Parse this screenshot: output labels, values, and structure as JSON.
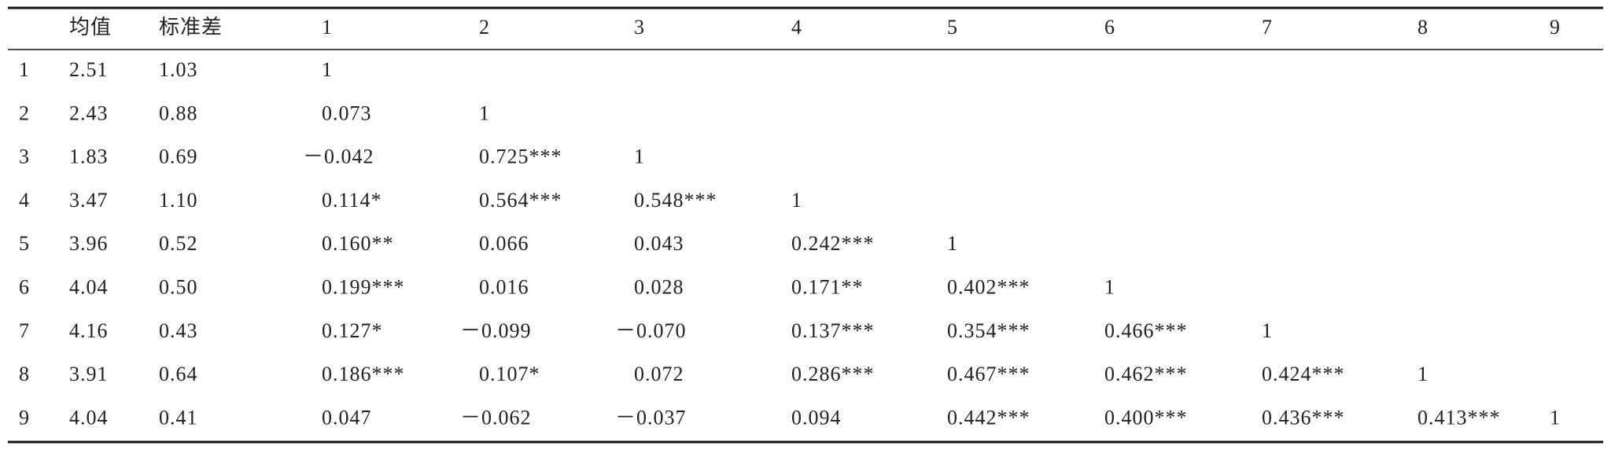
{
  "table": {
    "header": [
      "均值",
      "标准差",
      "1",
      "2",
      "3",
      "4",
      "5",
      "6",
      "7",
      "8",
      "9"
    ],
    "rows": [
      [
        "1",
        "2.51",
        "1.03",
        "1"
      ],
      [
        "2",
        "2.43",
        "0.88",
        "0.073",
        "1"
      ],
      [
        "3",
        "1.83",
        "0.69",
        "－0.042",
        "0.725***",
        "1"
      ],
      [
        "4",
        "3.47",
        "1.10",
        "0.114*",
        "0.564***",
        "0.548***",
        "1"
      ],
      [
        "5",
        "3.96",
        "0.52",
        "0.160**",
        "0.066",
        "0.043",
        "0.242***",
        "1"
      ],
      [
        "6",
        "4.04",
        "0.50",
        "0.199***",
        "0.016",
        "0.028",
        "0.171**",
        "0.402***",
        "1"
      ],
      [
        "7",
        "4.16",
        "0.43",
        "0.127*",
        "－0.099",
        "－0.070",
        "0.137***",
        "0.354***",
        "0.466***",
        "1"
      ],
      [
        "8",
        "3.91",
        "0.64",
        "0.186***",
        "0.107*",
        "0.072",
        "0.286***",
        "0.467***",
        "0.462***",
        "0.424***",
        "1"
      ],
      [
        "9",
        "4.04",
        "0.41",
        "0.047",
        "－0.062",
        "－0.037",
        "0.094",
        "0.442***",
        "0.400***",
        "0.436***",
        "0.413***",
        "1"
      ]
    ]
  }
}
